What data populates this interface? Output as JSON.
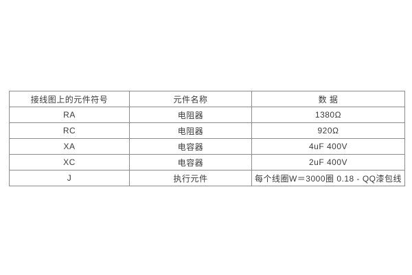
{
  "table": {
    "headers": [
      "接线图上的元件符号",
      "元件名称",
      "数 据"
    ],
    "rows": [
      {
        "symbol": "RA",
        "name": "电阻器",
        "data": "1380Ω"
      },
      {
        "symbol": "RC",
        "name": "电阻器",
        "data": "920Ω"
      },
      {
        "symbol": "XA",
        "name": "电容器",
        "data": "4uF 400V"
      },
      {
        "symbol": "XC",
        "name": "电容器",
        "data": "2uF 400V"
      },
      {
        "symbol": "J",
        "name": "执行元件",
        "data": "每个线圈W＝3000圈 0.18 - QQ漆包线"
      }
    ]
  },
  "colors": {
    "border": "#8a8a8a",
    "text": "#3a3a3a",
    "background": "#ffffff"
  }
}
